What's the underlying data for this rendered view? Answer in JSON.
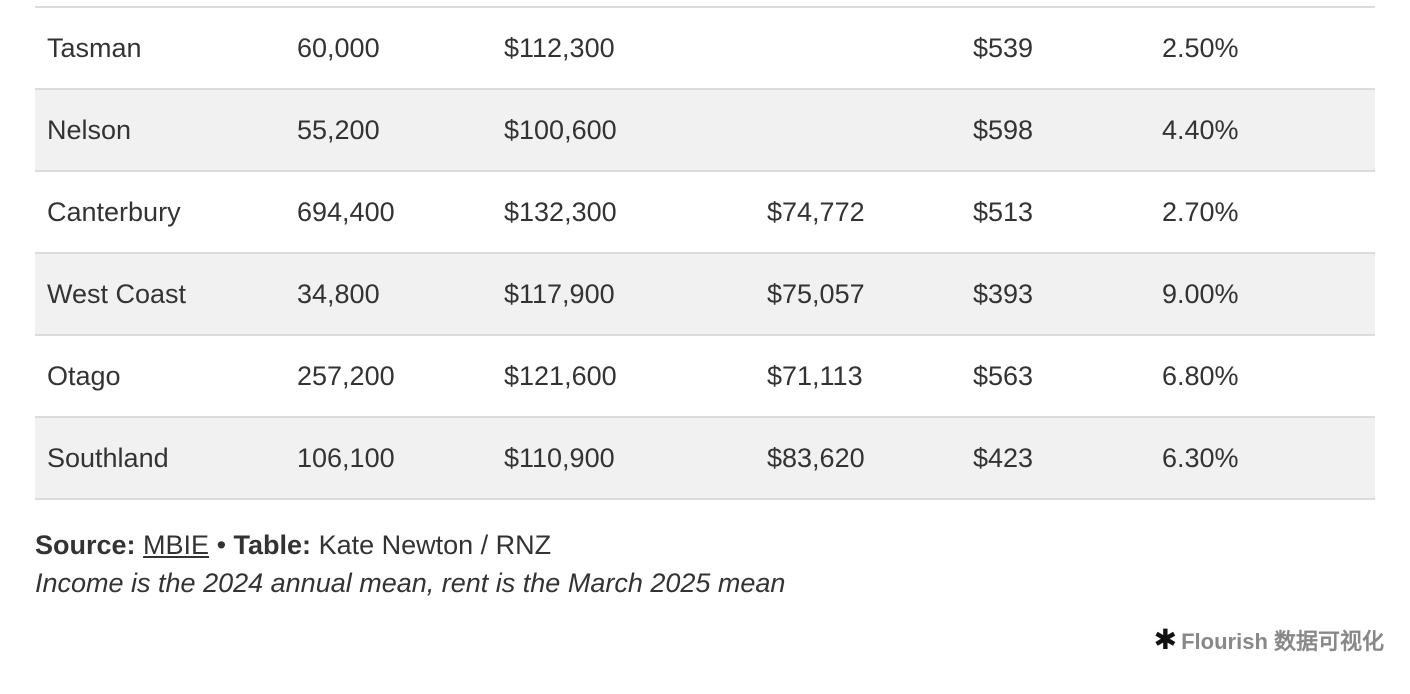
{
  "table": {
    "rows": [
      [
        "Tasman",
        "60,000",
        "$112,300",
        "",
        "$539",
        "2.50%"
      ],
      [
        "Nelson",
        "55,200",
        "$100,600",
        "",
        "$598",
        "4.40%"
      ],
      [
        "Canterbury",
        "694,400",
        "$132,300",
        "$74,772",
        "$513",
        "2.70%"
      ],
      [
        "West Coast",
        "34,800",
        "$117,900",
        "$75,057",
        "$393",
        "9.00%"
      ],
      [
        "Otago",
        "257,200",
        "$121,600",
        "$71,113",
        "$563",
        "6.80%"
      ],
      [
        "Southland",
        "106,100",
        "$110,900",
        "$83,620",
        "$423",
        "6.30%"
      ]
    ],
    "shaded_color": "#f1f1f1",
    "border_color": "#dcdcdc"
  },
  "footer": {
    "source_label": "Source:",
    "source_link": "MBIE",
    "separator": " • ",
    "table_label": "Table:",
    "table_credit": "Kate Newton / RNZ",
    "note": "Income is the 2024 annual mean, rent is the March 2025 mean"
  },
  "brand": {
    "icon": "asterisk-star-icon",
    "name": "Flourish 数据可视化"
  }
}
